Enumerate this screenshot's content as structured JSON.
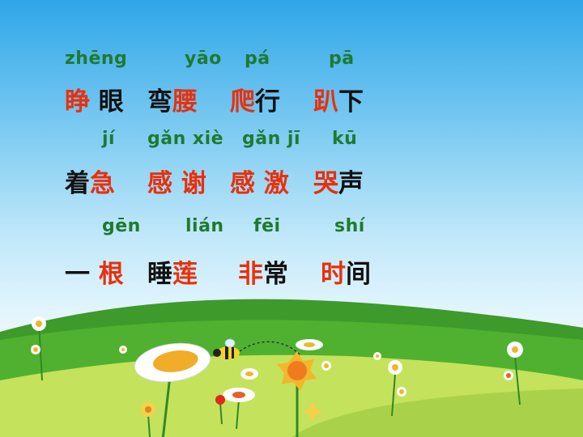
{
  "colors": {
    "pinyin": "#1f7a2e",
    "highlight": "#e8300d",
    "text": "#111111"
  },
  "rows": [
    {
      "pinyin": [
        "zhēng",
        "yāo",
        "pá",
        "pā"
      ],
      "words": [
        [
          {
            "t": "睁",
            "hl": true
          },
          {
            "t": " ",
            "hl": false
          },
          {
            "t": "眼",
            "hl": false
          }
        ],
        [
          {
            "t": "弯",
            "hl": false
          },
          {
            "t": "腰",
            "hl": true
          }
        ],
        [
          {
            "t": "爬",
            "hl": true
          },
          {
            "t": "行",
            "hl": false
          }
        ],
        [
          {
            "t": "趴",
            "hl": true
          },
          {
            "t": "下",
            "hl": false
          }
        ]
      ]
    },
    {
      "pinyin": [
        "jí",
        "gǎn xiè",
        "gǎn jī",
        "kū"
      ],
      "words": [
        [
          {
            "t": "着",
            "hl": false
          },
          {
            "t": "急",
            "hl": true
          }
        ],
        [
          {
            "t": "感",
            "hl": true
          },
          {
            "t": " ",
            "hl": false
          },
          {
            "t": "谢",
            "hl": true
          }
        ],
        [
          {
            "t": "感",
            "hl": true
          },
          {
            "t": " ",
            "hl": false
          },
          {
            "t": "激",
            "hl": true
          }
        ],
        [
          {
            "t": "哭",
            "hl": true
          },
          {
            "t": "声",
            "hl": false
          }
        ]
      ]
    },
    {
      "pinyin": [
        "gēn",
        "lián",
        "fēi",
        "shí"
      ],
      "words": [
        [
          {
            "t": "一",
            "hl": false
          },
          {
            "t": " ",
            "hl": false
          },
          {
            "t": "根",
            "hl": true
          }
        ],
        [
          {
            "t": "睡",
            "hl": false
          },
          {
            "t": "莲",
            "hl": true
          }
        ],
        [
          {
            "t": "非",
            "hl": true
          },
          {
            "t": "常",
            "hl": false
          }
        ],
        [
          {
            "t": "时",
            "hl": true
          },
          {
            "t": "间",
            "hl": false
          }
        ]
      ]
    }
  ],
  "scene_icons": [
    "hill",
    "daisy",
    "big-flower",
    "orange-flower",
    "bee"
  ]
}
